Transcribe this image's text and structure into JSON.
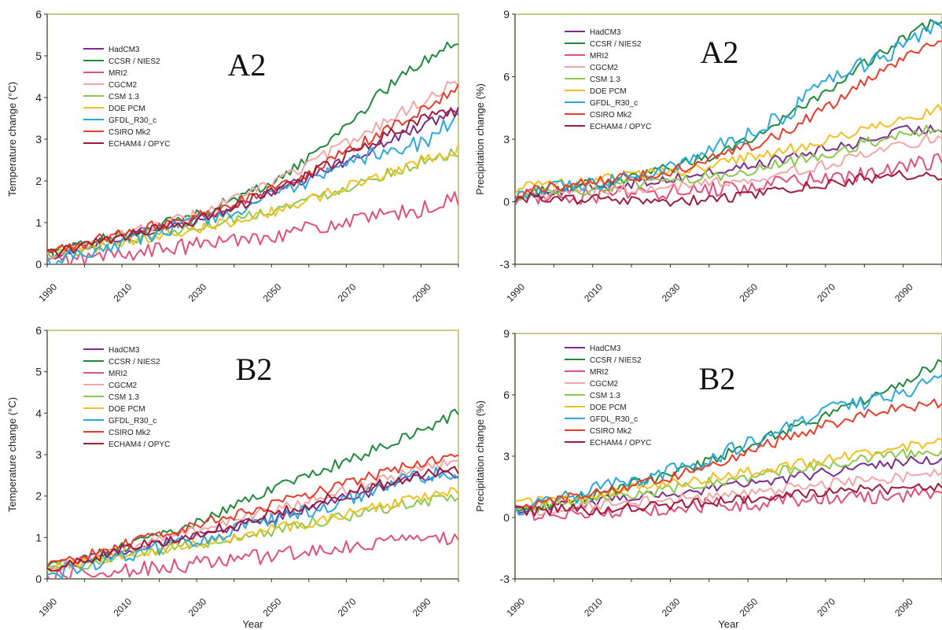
{
  "legend_items": [
    {
      "name": "HadCM3",
      "color": "#7b2d8e"
    },
    {
      "name": "CCSR / NIES2",
      "color": "#1f8a3a"
    },
    {
      "name": "MRI2",
      "color": "#e0507a"
    },
    {
      "name": "CGCM2",
      "color": "#f2a6a6"
    },
    {
      "name": "CSM 1.3",
      "color": "#8cc850"
    },
    {
      "name": "DOE PCM",
      "color": "#f2c020"
    },
    {
      "name": "GFDL_R30_c",
      "color": "#2aa8e0"
    },
    {
      "name": "CSIRO Mk2",
      "color": "#e83c2c"
    },
    {
      "name": "ECHAM4 / OPYC",
      "color": "#9c1c3c"
    }
  ],
  "chart_data": [
    {
      "type": "line",
      "panel_label": "A2",
      "xlabel": "",
      "ylabel": "Temperature change (°C)",
      "xlim": [
        1990,
        2100
      ],
      "ylim": [
        0,
        6
      ],
      "x_ticks": [
        "1990",
        "2010",
        "2030",
        "2050",
        "2070",
        "2090"
      ],
      "y_ticks": [
        "0",
        "1",
        "2",
        "3",
        "4",
        "5",
        "6"
      ],
      "grid": false,
      "legend": "top-left",
      "x": [
        1990,
        2000,
        2010,
        2020,
        2030,
        2040,
        2050,
        2060,
        2070,
        2080,
        2090,
        2100
      ],
      "series": [
        {
          "name": "HadCM3",
          "values": [
            0.2,
            0.45,
            0.65,
            0.85,
            1.05,
            1.35,
            1.7,
            2.05,
            2.5,
            2.9,
            3.3,
            3.7
          ]
        },
        {
          "name": "CCSR / NIES2",
          "values": [
            0.3,
            0.5,
            0.7,
            0.95,
            1.2,
            1.55,
            1.95,
            2.55,
            3.35,
            4.15,
            4.85,
            5.4
          ]
        },
        {
          "name": "MRI2",
          "values": [
            0.05,
            0.15,
            0.25,
            0.35,
            0.45,
            0.6,
            0.7,
            0.85,
            1.0,
            1.15,
            1.3,
            1.6
          ]
        },
        {
          "name": "CGCM2",
          "values": [
            0.25,
            0.45,
            0.7,
            0.95,
            1.2,
            1.55,
            1.95,
            2.4,
            2.9,
            3.4,
            3.9,
            4.4
          ]
        },
        {
          "name": "CSM 1.3",
          "values": [
            0.2,
            0.35,
            0.55,
            0.75,
            0.9,
            1.1,
            1.3,
            1.55,
            1.85,
            2.15,
            2.45,
            2.7
          ]
        },
        {
          "name": "DOE PCM",
          "values": [
            0.25,
            0.4,
            0.55,
            0.7,
            0.85,
            1.05,
            1.25,
            1.55,
            1.85,
            2.15,
            2.5,
            2.75
          ]
        },
        {
          "name": "GFDL_R30_c",
          "values": [
            0.1,
            0.3,
            0.55,
            0.8,
            1.05,
            1.3,
            1.6,
            1.95,
            2.35,
            2.75,
            2.9,
            3.5
          ]
        },
        {
          "name": "CSIRO Mk2",
          "values": [
            0.3,
            0.5,
            0.75,
            0.95,
            1.15,
            1.45,
            1.8,
            2.2,
            2.7,
            3.2,
            3.7,
            4.2
          ]
        },
        {
          "name": "ECHAM4 / OPYC",
          "values": [
            0.25,
            0.45,
            0.65,
            0.85,
            1.05,
            1.35,
            1.75,
            2.15,
            2.6,
            3.05,
            3.5,
            3.65
          ]
        }
      ]
    },
    {
      "type": "line",
      "panel_label": "A2",
      "xlabel": "",
      "ylabel": "Precipitation change (%)",
      "xlim": [
        1990,
        2100
      ],
      "ylim": [
        -3,
        9
      ],
      "x_ticks": [
        "1990",
        "2010",
        "2030",
        "2050",
        "2070",
        "2090"
      ],
      "y_ticks": [
        "-3",
        "0",
        "3",
        "6",
        "9"
      ],
      "grid": false,
      "legend": "top-left",
      "x": [
        1990,
        2000,
        2010,
        2020,
        2030,
        2040,
        2050,
        2060,
        2070,
        2080,
        2090,
        2100
      ],
      "series": [
        {
          "name": "HadCM3",
          "values": [
            0.3,
            0.5,
            0.7,
            0.9,
            1.1,
            1.4,
            1.7,
            2.1,
            2.5,
            2.9,
            3.4,
            3.5
          ]
        },
        {
          "name": "CCSR / NIES2",
          "values": [
            0.3,
            0.6,
            0.9,
            1.2,
            1.6,
            2.2,
            3.0,
            4.0,
            5.3,
            6.6,
            7.8,
            8.8
          ]
        },
        {
          "name": "MRI2",
          "values": [
            0.2,
            0.3,
            0.3,
            0.4,
            0.5,
            0.6,
            0.7,
            0.9,
            1.1,
            1.3,
            1.6,
            2.1
          ]
        },
        {
          "name": "CGCM2",
          "values": [
            0.3,
            0.4,
            0.5,
            0.6,
            0.7,
            0.9,
            1.1,
            1.4,
            1.8,
            2.2,
            2.7,
            3.2
          ]
        },
        {
          "name": "CSM 1.3",
          "values": [
            0.3,
            0.5,
            0.6,
            0.8,
            0.9,
            1.2,
            1.5,
            1.9,
            2.3,
            2.8,
            3.2,
            3.6
          ]
        },
        {
          "name": "DOE PCM",
          "values": [
            0.6,
            0.9,
            1.1,
            1.3,
            1.4,
            1.7,
            2.1,
            2.5,
            2.9,
            3.4,
            3.9,
            4.5
          ]
        },
        {
          "name": "GFDL_R30_c",
          "values": [
            0.2,
            0.6,
            0.9,
            1.2,
            1.6,
            2.6,
            3.2,
            4.2,
            5.7,
            6.6,
            7.4,
            8.6
          ]
        },
        {
          "name": "CSIRO Mk2",
          "values": [
            0.4,
            0.7,
            1.0,
            1.2,
            1.5,
            2.0,
            2.6,
            3.4,
            4.5,
            5.7,
            6.8,
            7.9
          ]
        },
        {
          "name": "ECHAM4 / OPYC",
          "values": [
            0.2,
            0.2,
            0.1,
            0.0,
            0.0,
            0.1,
            0.3,
            0.6,
            0.9,
            1.1,
            1.3,
            1.3
          ]
        }
      ]
    },
    {
      "type": "line",
      "panel_label": "B2",
      "xlabel": "Year",
      "ylabel": "Temperature change (°C)",
      "xlim": [
        1990,
        2100
      ],
      "ylim": [
        0,
        6
      ],
      "x_ticks": [
        "1990",
        "2010",
        "2030",
        "2050",
        "2070",
        "2090"
      ],
      "y_ticks": [
        "0",
        "1",
        "2",
        "3",
        "4",
        "5",
        "6"
      ],
      "grid": false,
      "legend": "top-left",
      "x": [
        1990,
        2000,
        2010,
        2020,
        2030,
        2040,
        2050,
        2060,
        2070,
        2080,
        2090,
        2100
      ],
      "series": [
        {
          "name": "HadCM3",
          "values": [
            0.25,
            0.45,
            0.65,
            0.85,
            1.05,
            1.25,
            1.45,
            1.7,
            1.95,
            2.2,
            2.45,
            2.5
          ]
        },
        {
          "name": "CCSR / NIES2",
          "values": [
            0.3,
            0.5,
            0.75,
            1.05,
            1.35,
            1.75,
            2.15,
            2.5,
            2.85,
            3.2,
            3.6,
            4.0
          ]
        },
        {
          "name": "MRI2",
          "values": [
            0.1,
            0.15,
            0.2,
            0.3,
            0.35,
            0.45,
            0.55,
            0.65,
            0.75,
            0.85,
            0.95,
            1.0
          ]
        },
        {
          "name": "CGCM2",
          "values": [
            0.25,
            0.45,
            0.7,
            0.95,
            1.15,
            1.4,
            1.65,
            1.9,
            2.15,
            2.4,
            2.65,
            2.9
          ]
        },
        {
          "name": "CSM 1.3",
          "values": [
            0.2,
            0.35,
            0.5,
            0.7,
            0.85,
            1.0,
            1.15,
            1.35,
            1.5,
            1.7,
            1.85,
            2.0
          ]
        },
        {
          "name": "DOE PCM",
          "values": [
            0.25,
            0.4,
            0.55,
            0.7,
            0.85,
            1.0,
            1.2,
            1.35,
            1.55,
            1.75,
            1.95,
            2.1
          ]
        },
        {
          "name": "GFDL_R30_c",
          "values": [
            0.1,
            0.3,
            0.55,
            0.75,
            0.9,
            1.15,
            1.4,
            1.65,
            1.9,
            2.2,
            2.5,
            2.5
          ]
        },
        {
          "name": "CSIRO Mk2",
          "values": [
            0.3,
            0.55,
            0.8,
            1.05,
            1.3,
            1.55,
            1.8,
            2.05,
            2.3,
            2.55,
            2.8,
            3.05
          ]
        },
        {
          "name": "ECHAM4 / OPYC",
          "values": [
            0.25,
            0.45,
            0.7,
            0.9,
            1.1,
            1.3,
            1.55,
            1.8,
            2.05,
            2.3,
            2.55,
            2.6
          ]
        }
      ]
    },
    {
      "type": "line",
      "panel_label": "B2",
      "xlabel": "Year",
      "ylabel": "Precipitation change (%)",
      "xlim": [
        1990,
        2100
      ],
      "ylim": [
        -3,
        9
      ],
      "x_ticks": [
        "1990",
        "2010",
        "2030",
        "2050",
        "2070",
        "2090"
      ],
      "y_ticks": [
        "-3",
        "0",
        "3",
        "6",
        "9"
      ],
      "grid": false,
      "legend": "top-left",
      "x": [
        1990,
        2000,
        2010,
        2020,
        2030,
        2040,
        2050,
        2060,
        2070,
        2080,
        2090,
        2100
      ],
      "series": [
        {
          "name": "HadCM3",
          "values": [
            0.4,
            0.6,
            0.8,
            1.0,
            1.2,
            1.4,
            1.7,
            1.9,
            2.2,
            2.5,
            2.7,
            2.9
          ]
        },
        {
          "name": "CCSR / NIES2",
          "values": [
            0.3,
            0.7,
            1.1,
            1.6,
            2.1,
            2.8,
            3.5,
            4.3,
            5.0,
            5.8,
            6.6,
            7.6
          ]
        },
        {
          "name": "MRI2",
          "values": [
            0.2,
            0.3,
            0.3,
            0.4,
            0.5,
            0.6,
            0.7,
            0.8,
            0.9,
            1.0,
            1.1,
            1.2
          ]
        },
        {
          "name": "CGCM2",
          "values": [
            0.3,
            0.4,
            0.6,
            0.7,
            0.9,
            1.0,
            1.2,
            1.4,
            1.6,
            1.8,
            2.0,
            2.2
          ]
        },
        {
          "name": "CSM 1.3",
          "values": [
            0.4,
            0.6,
            0.9,
            1.1,
            1.4,
            1.7,
            2.0,
            2.3,
            2.6,
            2.9,
            3.1,
            3.3
          ]
        },
        {
          "name": "DOE PCM",
          "values": [
            0.6,
            0.9,
            1.1,
            1.4,
            1.6,
            1.9,
            2.2,
            2.5,
            2.8,
            3.1,
            3.4,
            3.8
          ]
        },
        {
          "name": "GFDL_R30_c",
          "values": [
            0.3,
            0.8,
            1.3,
            1.8,
            2.3,
            2.8,
            3.6,
            4.4,
            5.2,
            5.6,
            6.0,
            7.0
          ]
        },
        {
          "name": "CSIRO Mk2",
          "values": [
            0.4,
            0.8,
            1.2,
            1.6,
            2.0,
            2.6,
            3.2,
            3.9,
            4.5,
            5.0,
            5.4,
            5.6
          ]
        },
        {
          "name": "ECHAM4 / OPYC",
          "values": [
            0.3,
            0.4,
            0.4,
            0.5,
            0.6,
            0.7,
            0.9,
            1.1,
            1.3,
            1.4,
            1.4,
            1.5
          ]
        }
      ]
    }
  ]
}
